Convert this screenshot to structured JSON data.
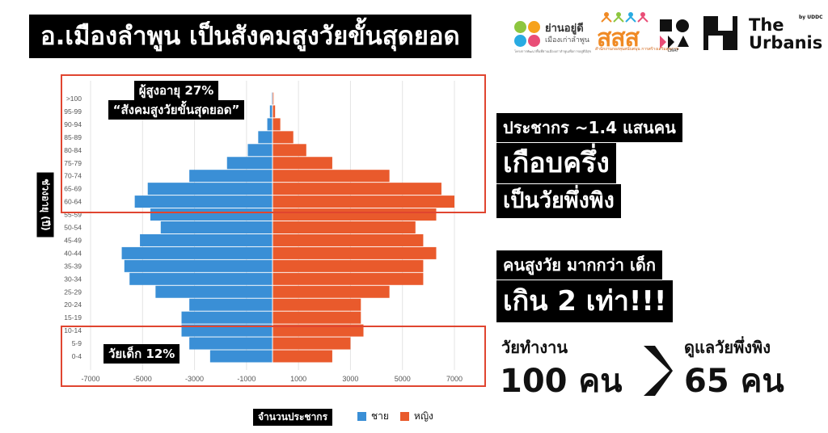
{
  "title": "อ.เมืองลำพูน เป็นสังคมสูงวัยขั้นสุดยอด",
  "logos": {
    "yan_name": "ย่านอยู่ดี",
    "yan_sub": "เมืองเก่าลำพูน",
    "yan_tiny": "โครงการพัฒนาพื้นที่ย่านเมืองเก่าลำพูนเพื่อการอยู่ดีมีสุข",
    "sss": "สสส",
    "sss_sub": "สำนักงานกองทุนสนับสนุน การสร้างเสริมสุขภาพ",
    "sf_label": "LWAF",
    "urbanis_name": "The Urbanis",
    "urbanis_by": "by UDDC"
  },
  "colors": {
    "male": "#3a8fd6",
    "female": "#e95a2c",
    "highlight_box": "#e04530",
    "text_bg": "#000000"
  },
  "chart_data": {
    "type": "bar",
    "orientation": "horizontal",
    "stacked": "population-pyramid",
    "categories": [
      ">100",
      "95-99",
      "90-94",
      "85-89",
      "80-84",
      "75-79",
      "70-74",
      "65-69",
      "60-64",
      "55-59",
      "50-54",
      "45-49",
      "40-44",
      "35-39",
      "30-34",
      "25-29",
      "20-24",
      "15-19",
      "10-14",
      "5-9",
      "0-4"
    ],
    "series": [
      {
        "name": "ชาย",
        "values": [
          -30,
          -100,
          -200,
          -550,
          -950,
          -1750,
          -3200,
          -4800,
          -5300,
          -4700,
          -4300,
          -5100,
          -5800,
          -5700,
          -5500,
          -4500,
          -3200,
          -3500,
          -3500,
          -3200,
          -2400
        ]
      },
      {
        "name": "หญิง",
        "values": [
          40,
          100,
          300,
          800,
          1300,
          2300,
          4500,
          6500,
          7000,
          6300,
          5500,
          5800,
          6300,
          5800,
          5800,
          4500,
          3400,
          3400,
          3500,
          3000,
          2300
        ]
      }
    ],
    "xticks": [
      "-7000",
      "-5000",
      "-3000",
      "-1000",
      "1000",
      "3000",
      "5000",
      "7000"
    ],
    "xlim": [
      -8500,
      8500
    ],
    "xlabel": "จำนวนประชากร",
    "ylabel": "ช่วงอายุ (ปี)",
    "grid": true,
    "legend": "bottom"
  },
  "annotations": {
    "elderly_line1": "ผู้สูงอายุ 27%",
    "elderly_line2": "“สังคมสูงวัยขั้นสุดยอด”",
    "child": "วัยเด็ก 12%"
  },
  "right_panel": {
    "line1": "ประชากร ~1.4 แสนคน",
    "line2": "เกือบครึ่ง",
    "line3": "เป็นวัยพึ่งพิง",
    "line4": "คนสูงวัย มากกว่า เด็ก",
    "line5": "เกิน 2 เท่า!!!",
    "working_label": "วัยทำงาน",
    "working_value": "100 คน",
    "dependent_label": "ดูแลวัยพึ่งพิง",
    "dependent_value": "65 คน"
  }
}
